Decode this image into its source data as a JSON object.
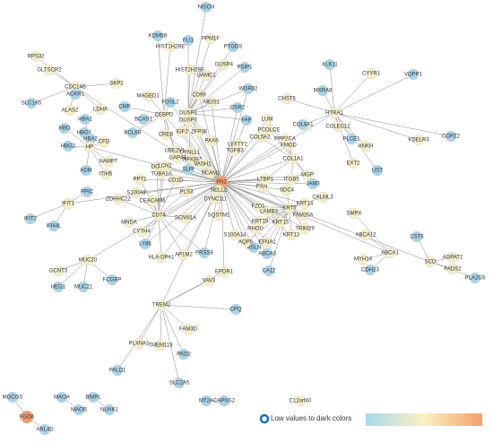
{
  "nodes": [
    {
      "label": "NISCH"
    },
    {
      "label": "KDM5B"
    },
    {
      "label": "FLI1"
    },
    {
      "label": "HIST1H2BE"
    },
    {
      "label": "PPM1F"
    },
    {
      "label": "HIST2H2BE"
    },
    {
      "label": "PTGDS"
    },
    {
      "label": "DUSP4"
    },
    {
      "label": "PSIP1"
    },
    {
      "label": "GAMC1"
    },
    {
      "label": "RPS32"
    },
    {
      "label": "GLTSCR2"
    },
    {
      "label": "CDC14B"
    },
    {
      "label": "SKP2"
    },
    {
      "label": "SLC1A5"
    },
    {
      "label": "ACKR1"
    },
    {
      "label": "MAGED1"
    },
    {
      "label": "CMP"
    },
    {
      "label": "BCAS1"
    },
    {
      "label": "CD99"
    },
    {
      "label": "MEIS1"
    },
    {
      "label": "DUSP1"
    },
    {
      "label": "DUSP5"
    },
    {
      "label": "FOSL2"
    },
    {
      "label": "CEBPD"
    },
    {
      "label": "KLK11"
    },
    {
      "label": "MXRA8"
    },
    {
      "label": "WDR82"
    },
    {
      "label": "CYYR1"
    },
    {
      "label": "VOPP1"
    },
    {
      "label": "CHST6"
    },
    {
      "label": "HTRA1"
    },
    {
      "label": "ALAS2"
    },
    {
      "label": "LDHA"
    },
    {
      "label": "HBA1"
    },
    {
      "label": "BCL6B"
    },
    {
      "label": "CREB"
    },
    {
      "label": "IGF2"
    },
    {
      "label": "ZFP36"
    },
    {
      "label": "OSR2"
    },
    {
      "label": "FAP"
    },
    {
      "label": "LUM"
    },
    {
      "label": "PCOLCE"
    },
    {
      "label": "COL5A2"
    },
    {
      "label": "COL6A1"
    },
    {
      "label": "COLEC12"
    },
    {
      "label": "HBD"
    },
    {
      "label": "HBG1"
    },
    {
      "label": "HBA2"
    },
    {
      "label": "HBG2"
    },
    {
      "label": "HP"
    },
    {
      "label": "CFD"
    },
    {
      "label": "UBE2V1"
    },
    {
      "label": "DYNLL1"
    },
    {
      "label": "NFKBIA"
    },
    {
      "label": "PAX6"
    },
    {
      "label": "LEFTY2"
    },
    {
      "label": "TGFB3"
    },
    {
      "label": "PPP2CA"
    },
    {
      "label": "FMOD"
    },
    {
      "label": "PLCE1"
    },
    {
      "label": "COPZ2"
    },
    {
      "label": "KDELR3"
    },
    {
      "label": "ANKH"
    },
    {
      "label": "NCAM1"
    },
    {
      "label": "FN1"
    },
    {
      "label": "COL1A1"
    },
    {
      "label": "MGP"
    },
    {
      "label": "ITGB5"
    },
    {
      "label": "PXN"
    },
    {
      "label": "SDC4"
    },
    {
      "label": "LTBP1"
    },
    {
      "label": "EXT2"
    },
    {
      "label": "UST"
    },
    {
      "label": "JAM3"
    },
    {
      "label": "CALML3"
    },
    {
      "label": "NAMPT"
    },
    {
      "label": "DCT"
    },
    {
      "label": "GAP43"
    },
    {
      "label": "VASH1"
    },
    {
      "label": "LCN2"
    },
    {
      "label": "TUBA1A"
    },
    {
      "label": "CD1D"
    },
    {
      "label": "SLPI"
    },
    {
      "label": "DYNC1LI"
    },
    {
      "label": "ITIH5"
    },
    {
      "label": "PPT1"
    },
    {
      "label": "ADM"
    },
    {
      "label": "PPIC"
    },
    {
      "label": "ZDHHC22"
    },
    {
      "label": "S100A9"
    },
    {
      "label": "CEACAM6"
    },
    {
      "label": "FZD1"
    },
    {
      "label": "LAMB3"
    },
    {
      "label": "PLS3"
    },
    {
      "label": "NELL2"
    },
    {
      "label": "KRT14"
    },
    {
      "label": "KRT5"
    },
    {
      "label": "FAM20A"
    },
    {
      "label": "SMPX"
    },
    {
      "label": "IFIT1"
    },
    {
      "label": "IFIT2"
    },
    {
      "label": "IFI44L"
    },
    {
      "label": "CD74"
    },
    {
      "label": "SQSTM1"
    },
    {
      "label": "SCNN1A"
    },
    {
      "label": "KRT19"
    },
    {
      "label": "RHOU"
    },
    {
      "label": "KRT15"
    },
    {
      "label": "TRIM29"
    },
    {
      "label": "KRT13"
    },
    {
      "label": "ABCA12"
    },
    {
      "label": "CST6"
    },
    {
      "label": "MSLN"
    },
    {
      "label": "MNDA"
    },
    {
      "label": "CYTH4"
    },
    {
      "label": "LY86"
    },
    {
      "label": "S100A14"
    },
    {
      "label": "AQP5"
    },
    {
      "label": "EFNA1"
    },
    {
      "label": "HLA-DPA1"
    },
    {
      "label": "AP1M2"
    },
    {
      "label": "PRSS8"
    },
    {
      "label": "ABCA1"
    },
    {
      "label": "MYH14"
    },
    {
      "label": "SCD"
    },
    {
      "label": "AGPAT2"
    },
    {
      "label": "FADS2"
    },
    {
      "label": "PLA2G5"
    },
    {
      "label": "CDH23"
    },
    {
      "label": "ABCA3"
    },
    {
      "label": "CA12"
    },
    {
      "label": "GCNT3"
    },
    {
      "label": "MUC20"
    },
    {
      "label": "MUC21"
    },
    {
      "label": "HEG1"
    },
    {
      "label": "FCGBP"
    },
    {
      "label": "VAV3"
    },
    {
      "label": "EPDR1"
    },
    {
      "label": "TREM2"
    },
    {
      "label": "CPQ"
    },
    {
      "label": "FAM3D"
    },
    {
      "label": "PKD2"
    },
    {
      "label": "PLXNA1"
    },
    {
      "label": "TMEM119"
    },
    {
      "label": "PALD1"
    },
    {
      "label": "SLC2A5"
    },
    {
      "label": "MT2A"
    },
    {
      "label": "CAPNS2"
    },
    {
      "label": "C12orf40"
    },
    {
      "label": "MOCOS"
    },
    {
      "label": "MAOA"
    },
    {
      "label": "BNIPL"
    },
    {
      "label": "MAOB"
    },
    {
      "label": "NUAK1"
    },
    {
      "label": "FGD6"
    },
    {
      "label": "ARL4D"
    }
  ],
  "legend": {
    "label": "Low values to dark colors"
  }
}
